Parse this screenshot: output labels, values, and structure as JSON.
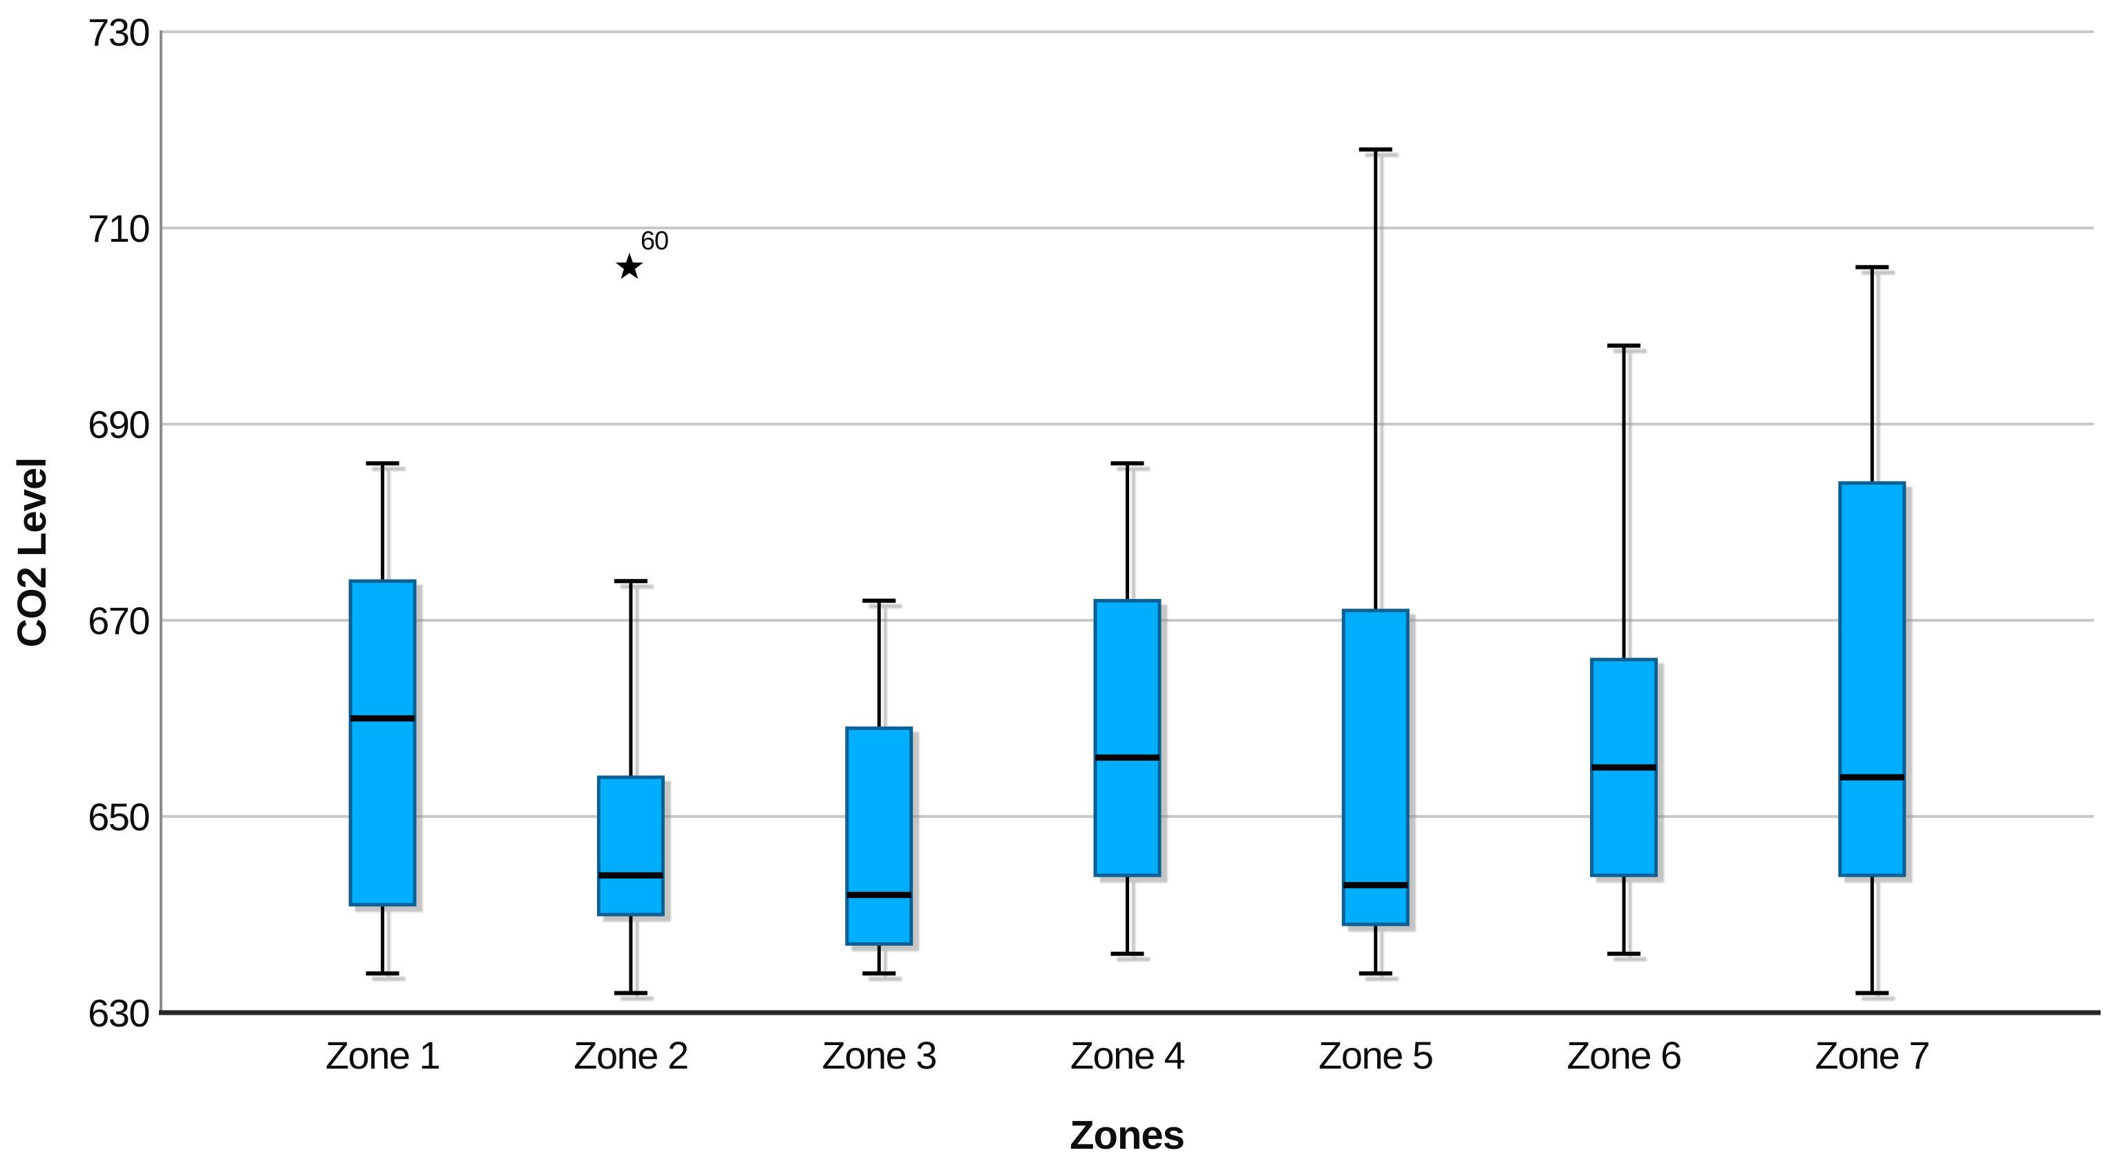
{
  "chart_data": {
    "type": "boxplot",
    "title": "",
    "xlabel": "Zones",
    "ylabel": "CO2 Level",
    "ylim": [
      630,
      730
    ],
    "yticks": [
      630,
      650,
      670,
      690,
      710,
      730
    ],
    "grid": "horizontal",
    "legend": "none",
    "categories": [
      "Zone 1",
      "Zone 2",
      "Zone 3",
      "Zone 4",
      "Zone 5",
      "Zone 6",
      "Zone 7"
    ],
    "series": [
      {
        "name": "CO2 Level",
        "boxes": [
          {
            "category": "Zone 1",
            "whisker_low": 634,
            "q1": 641,
            "median": 660,
            "q3": 674,
            "whisker_high": 686
          },
          {
            "category": "Zone 2",
            "whisker_low": 632,
            "q1": 640,
            "median": 644,
            "q3": 654,
            "whisker_high": 674
          },
          {
            "category": "Zone 3",
            "whisker_low": 634,
            "q1": 637,
            "median": 642,
            "q3": 659,
            "whisker_high": 672
          },
          {
            "category": "Zone 4",
            "whisker_low": 636,
            "q1": 644,
            "median": 656,
            "q3": 672,
            "whisker_high": 686
          },
          {
            "category": "Zone 5",
            "whisker_low": 634,
            "q1": 639,
            "median": 643,
            "q3": 671,
            "whisker_high": 718
          },
          {
            "category": "Zone 6",
            "whisker_low": 636,
            "q1": 644,
            "median": 655,
            "q3": 666,
            "whisker_high": 698
          },
          {
            "category": "Zone 7",
            "whisker_low": 632,
            "q1": 644,
            "median": 654,
            "q3": 684,
            "whisker_high": 706
          }
        ]
      }
    ],
    "outliers": [
      {
        "category": "Zone 2",
        "value": 706,
        "label": "60",
        "marker": "star"
      }
    ]
  },
  "style": {
    "box_fill": "#00AEFF",
    "box_border": "#0A6191",
    "median_color": "#000000",
    "whisker_color": "#000000",
    "outlier_color": "#000000",
    "gridline_color": "#C8C8C8",
    "y_axis_color": "#8C8C8C",
    "x_axis_color": "#262626",
    "text_color": "#0D0D0D",
    "shadow_color": "#8A8A8A",
    "background": "#FFFFFF"
  }
}
